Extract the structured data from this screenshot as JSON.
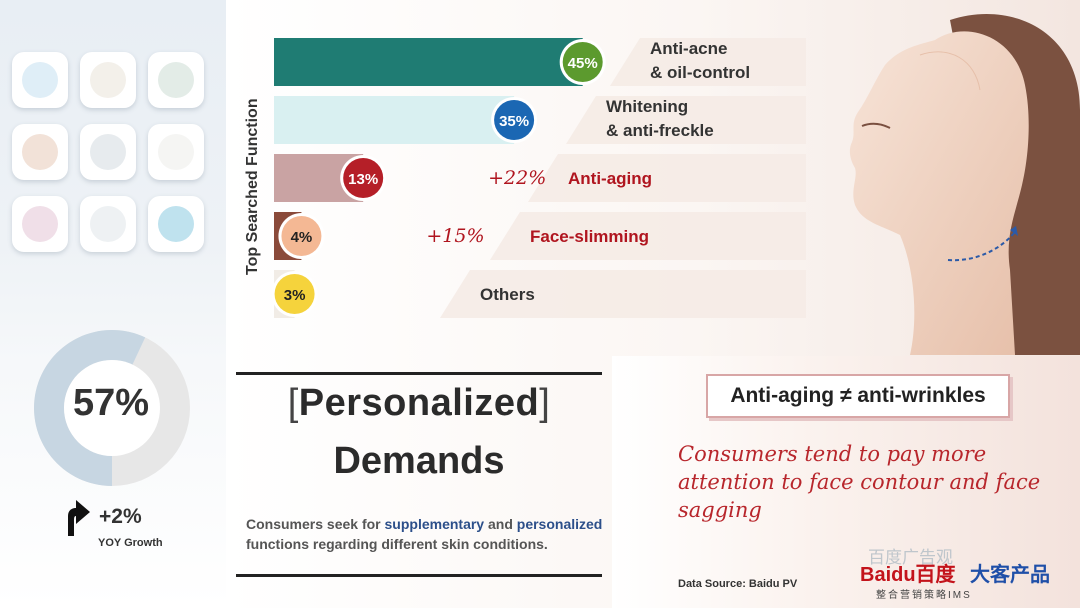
{
  "chart_data": {
    "type": "bar",
    "title": "Top Searched Function",
    "ylabel": "Top Searched Function",
    "categories": [
      "Anti-acne & oil-control",
      "Whitening & anti-freckle",
      "Anti-aging",
      "Face-slimming",
      "Others"
    ],
    "category_lines": [
      [
        "Anti-acne",
        "& oil-control"
      ],
      [
        "Whitening",
        "& anti-freckle"
      ],
      [
        "Anti-aging"
      ],
      [
        "Face-slimming"
      ],
      [
        "Others"
      ]
    ],
    "values": [
      45,
      35,
      13,
      4,
      3
    ],
    "value_labels": [
      "45%",
      "35%",
      "13%",
      "4%",
      "3%"
    ],
    "growth": [
      "",
      "",
      "+22%",
      "+15%",
      ""
    ],
    "bar_colors": [
      "#1f7c73",
      "#d9f0f1",
      "#c9a3a3",
      "#8a4a3a",
      "#f1ece6"
    ],
    "badge_colors": [
      "#5c9a2e",
      "#1b67b3",
      "#b51f28",
      "#f4b894",
      "#f5d33c"
    ],
    "label_colors": [
      "#333333",
      "#333333",
      "#b0151f",
      "#b0151f",
      "#333333"
    ],
    "xlim": [
      0,
      100
    ]
  },
  "donut": {
    "value": "57%",
    "fraction": 0.57,
    "growth": "+2%",
    "growth_label": "YOY Growth"
  },
  "personalized": {
    "bracket_left": "[",
    "title": "Personalized",
    "bracket_right": "]",
    "subtitle": "Demands",
    "desc_1": "Consumers seek for ",
    "desc_hl_1": "supplementary",
    "desc_2": " and ",
    "desc_hl_2": "personalized",
    "desc_3": "functions regarding different skin conditions."
  },
  "antiaging_box": "Anti-aging ≠ anti-wrinkles",
  "consumer_note": "Consumers tend to pay more attention to face contour and face sagging",
  "source": "Data Source: Baidu PV",
  "logo": {
    "baidu": "Baidu百度",
    "brand": "大客产品",
    "sub": "整合营销策略IMS"
  },
  "watermark": "百度广告观"
}
